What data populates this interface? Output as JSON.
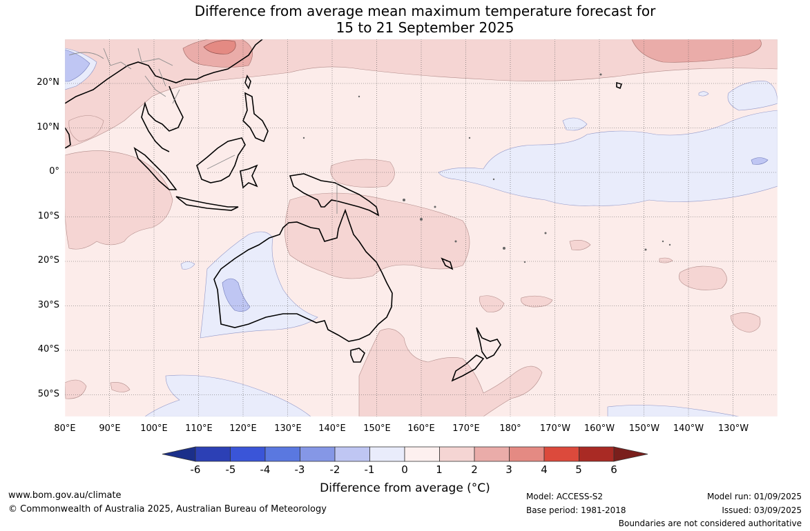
{
  "title": {
    "line1": "Difference from average mean maximum temperature forecast for",
    "line2": "15 to 21 September 2025"
  },
  "lat_labels": [
    "20°N",
    "10°N",
    "0°",
    "10°S",
    "20°S",
    "30°S",
    "40°S",
    "50°S"
  ],
  "lon_labels": [
    "80°E",
    "90°E",
    "100°E",
    "110°E",
    "120°E",
    "130°E",
    "140°E",
    "150°E",
    "160°E",
    "170°E",
    "180°",
    "170°W",
    "160°W",
    "150°W",
    "140°W",
    "130°W"
  ],
  "colorbar": {
    "ticks": [
      "-6",
      "-5",
      "-4",
      "-3",
      "-2",
      "-1",
      "0",
      "1",
      "2",
      "3",
      "4",
      "5",
      "6"
    ],
    "colors": [
      "#1b2f8a",
      "#2c40b5",
      "#3a55d8",
      "#5a78e0",
      "#8597e6",
      "#bfc6f3",
      "#e9ecfb",
      "#fdf0ef",
      "#f5d5d3",
      "#eaaca9",
      "#e48a83",
      "#dc4a3c",
      "#a92a24",
      "#7a1f1c"
    ],
    "title": "Difference from average (°C)"
  },
  "colors": {
    "land_default": "#fcecea",
    "above_1": "#f5d5d3",
    "above_2": "#eaaca9",
    "above_3": "#e48a83",
    "below_0": "#e9ecfb",
    "below_1": "#bfc6f3"
  },
  "footer": {
    "website": "www.bom.gov.au/climate",
    "copyright": "© Commonwealth of Australia 2025, Australian Bureau of Meteorology",
    "model": "Model: ACCESS-S2",
    "base_period": "Base period: 1981-2018",
    "model_run": "Model run: 01/09/2025",
    "issued": "Issued: 03/09/2025",
    "boundaries": "Boundaries are not considered authoritative"
  }
}
